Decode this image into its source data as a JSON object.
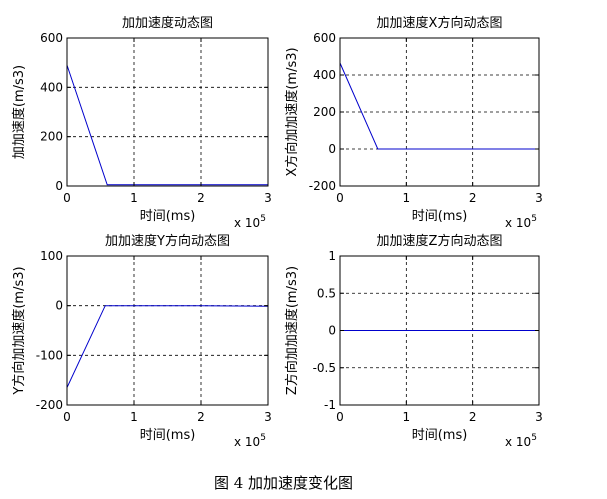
{
  "figure": {
    "caption": "图 4  加加速度变化图",
    "exponent_base": "x 10",
    "exponent_power": "5"
  },
  "chart_data": [
    {
      "type": "line",
      "title": "加加速度动态图",
      "xlabel": "时间(ms)",
      "ylabel": "加加速度(m/s3)",
      "xlim": [
        0,
        3
      ],
      "ylim": [
        0,
        600
      ],
      "xticks": [
        "0",
        "1",
        "2",
        "3"
      ],
      "yticks": [
        0,
        200,
        400,
        600
      ],
      "ytick_labels": [
        "0",
        "200",
        "400",
        "600"
      ],
      "grid": true,
      "line_color": "#0000cc",
      "series": [
        {
          "x": [
            0,
            0.6,
            3
          ],
          "y": [
            490,
            5,
            5
          ]
        }
      ]
    },
    {
      "type": "line",
      "title": "加加速度X方向动态图",
      "xlabel": "时间(ms)",
      "ylabel": "X方向加加速度(m/s3)",
      "xlim": [
        0,
        3
      ],
      "ylim": [
        -200,
        600
      ],
      "xticks": [
        "0",
        "1",
        "2",
        "3"
      ],
      "yticks": [
        -200,
        0,
        200,
        400,
        600
      ],
      "ytick_labels": [
        "-200",
        "0",
        "200",
        "400",
        "600"
      ],
      "grid": true,
      "line_color": "#0000cc",
      "series": [
        {
          "x": [
            0,
            0.57,
            3
          ],
          "y": [
            465,
            0,
            0
          ]
        }
      ]
    },
    {
      "type": "line",
      "title": "加加速度Y方向动态图",
      "xlabel": "时间(ms)",
      "ylabel": "Y方向加加速度(m/s3)",
      "xlim": [
        0,
        3
      ],
      "ylim": [
        -200,
        100
      ],
      "xticks": [
        "0",
        "1",
        "2",
        "3"
      ],
      "yticks": [
        -200,
        -100,
        0,
        100
      ],
      "ytick_labels": [
        "-200",
        "-100",
        "0",
        "100"
      ],
      "grid": true,
      "line_color": "#0000cc",
      "series": [
        {
          "x": [
            0,
            0.57,
            2,
            3
          ],
          "y": [
            -165,
            0,
            0,
            -1
          ]
        }
      ]
    },
    {
      "type": "line",
      "title": "加加速度Z方向动态图",
      "xlabel": "时间(ms)",
      "ylabel": "Z方向加加速度(m/s3)",
      "xlim": [
        0,
        3
      ],
      "ylim": [
        -1,
        1
      ],
      "xticks": [
        "0",
        "1",
        "2",
        "3"
      ],
      "yticks": [
        -1,
        -0.5,
        0,
        0.5,
        1
      ],
      "ytick_labels": [
        "-1",
        "-0.5",
        "0",
        "0.5",
        "1"
      ],
      "grid": true,
      "line_color": "#0000cc",
      "series": [
        {
          "x": [
            0,
            3
          ],
          "y": [
            0,
            0
          ]
        }
      ]
    }
  ]
}
